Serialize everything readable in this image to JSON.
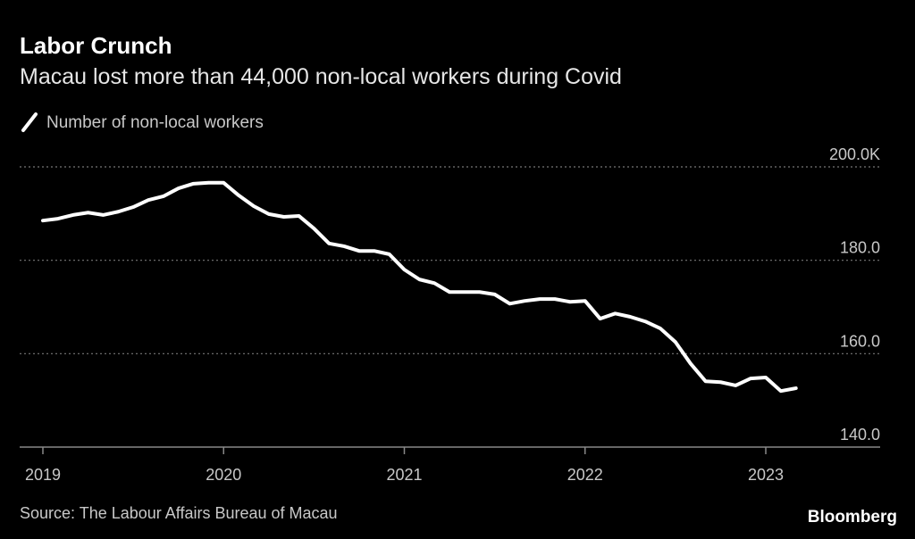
{
  "chart_data": {
    "type": "line",
    "title": "Labor Crunch",
    "subtitle": "Macau lost more than 44,000 non-local workers during Covid",
    "source": "Source: The Labour Affairs Bureau of Macau",
    "brand": "Bloomberg",
    "x": [
      "2019-01",
      "2019-02",
      "2019-03",
      "2019-04",
      "2019-05",
      "2019-06",
      "2019-07",
      "2019-08",
      "2019-09",
      "2019-10",
      "2019-11",
      "2019-12",
      "2020-01",
      "2020-02",
      "2020-03",
      "2020-04",
      "2020-05",
      "2020-06",
      "2020-07",
      "2020-08",
      "2020-09",
      "2020-10",
      "2020-11",
      "2020-12",
      "2021-01",
      "2021-02",
      "2021-03",
      "2021-04",
      "2021-05",
      "2021-06",
      "2021-07",
      "2021-08",
      "2021-09",
      "2021-10",
      "2021-11",
      "2021-12",
      "2022-01",
      "2022-02",
      "2022-03",
      "2022-04",
      "2022-05",
      "2022-06",
      "2022-07",
      "2022-08",
      "2022-09",
      "2022-10",
      "2022-11",
      "2022-12",
      "2023-01",
      "2023-02",
      "2023-03"
    ],
    "series": [
      {
        "name": "Number of non-local workers",
        "color": "#ffffff",
        "values": [
          188.5,
          188.9,
          189.7,
          190.2,
          189.7,
          190.4,
          191.4,
          192.9,
          193.7,
          195.4,
          196.4,
          196.6,
          196.6,
          193.9,
          191.6,
          189.9,
          189.3,
          189.5,
          186.8,
          183.6,
          183.0,
          182.0,
          182.0,
          181.3,
          178.0,
          175.9,
          175.1,
          173.2,
          173.2,
          173.2,
          172.7,
          170.7,
          171.3,
          171.7,
          171.7,
          171.1,
          171.3,
          167.5,
          168.6,
          167.9,
          166.9,
          165.4,
          162.5,
          157.9,
          154.1,
          153.9,
          153.2,
          154.7,
          154.9,
          152.0,
          152.6
        ]
      }
    ],
    "ylim": [
      140,
      200
    ],
    "yticks": [
      {
        "value": 140,
        "label": "140.0"
      },
      {
        "value": 160,
        "label": "160.0"
      },
      {
        "value": 180,
        "label": "180.0"
      },
      {
        "value": 200,
        "label": "200.0K"
      }
    ],
    "xticks": [
      {
        "value": "2019-01",
        "label": "2019"
      },
      {
        "value": "2020-01",
        "label": "2020"
      },
      {
        "value": "2021-01",
        "label": "2021"
      },
      {
        "value": "2022-01",
        "label": "2022"
      },
      {
        "value": "2023-01",
        "label": "2023"
      }
    ],
    "grid": true
  }
}
